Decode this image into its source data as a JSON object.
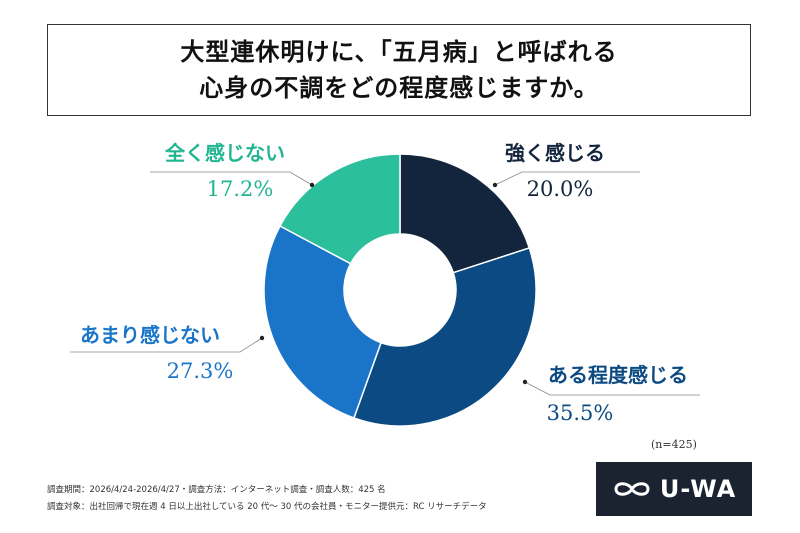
{
  "title": {
    "line1": "大型連休明けに、「五月病」と呼ばれる",
    "line2": "心身の不調をどの程度感じますか。"
  },
  "chart_data": {
    "type": "pie",
    "donut": true,
    "unit": "%",
    "slices": [
      {
        "label": "強く感じる",
        "value": 20.0,
        "display": "20.0%",
        "color": "#13253d",
        "label_color": "#13253d"
      },
      {
        "label": "ある程度感じる",
        "value": 35.5,
        "display": "35.5%",
        "color": "#0b4a82",
        "label_color": "#0b4a82"
      },
      {
        "label": "あまり感じない",
        "value": 27.3,
        "display": "27.3%",
        "color": "#1a75c9",
        "label_color": "#1a75c9"
      },
      {
        "label": "全く感じない",
        "value": 17.2,
        "display": "17.2%",
        "color": "#2bbf9b",
        "label_color": "#22b592"
      }
    ],
    "sample": "(n=425)"
  },
  "footnotes": {
    "line1": "調査期間：2026/4/24-2026/4/27・調査方法：インターネット調査・調査人数：425 名",
    "line2": "調査対象：出社回帰で現在週 4 日以上出社している 20 代～ 30 代の会社員・モニター提供元：RC リサーチデータ"
  },
  "logo": {
    "text": "U-WA",
    "icon": "infinity-icon",
    "bg_color": "#1c2330"
  }
}
